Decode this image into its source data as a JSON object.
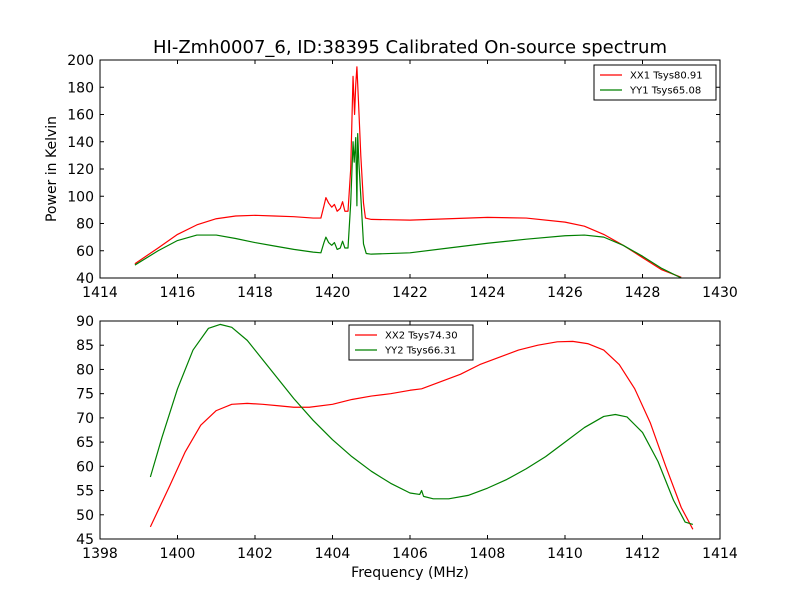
{
  "chart_data": {
    "title": "HI-Zmh0007_6, ID:38395 Calibrated On-source spectrum",
    "charts": [
      {
        "type": "line",
        "ylabel": "Power in Kelvin",
        "xlabel": "",
        "xlim": [
          1414,
          1430
        ],
        "ylim": [
          40,
          200
        ],
        "xticks": [
          "1414",
          "1416",
          "1418",
          "1420",
          "1422",
          "1424",
          "1426",
          "1428",
          "1430"
        ],
        "yticks": [
          "40",
          "60",
          "80",
          "100",
          "120",
          "140",
          "160",
          "180",
          "200"
        ],
        "legend_position": "top-right",
        "series": [
          {
            "name": "XX1 Tsys80.91",
            "color": "#ff0000",
            "points": [
              [
                1414.9,
                50.5
              ],
              [
                1415.5,
                62
              ],
              [
                1416.0,
                72
              ],
              [
                1416.5,
                79
              ],
              [
                1417.0,
                83.5
              ],
              [
                1417.5,
                85.5
              ],
              [
                1418.0,
                86
              ],
              [
                1418.5,
                85.5
              ],
              [
                1419.0,
                85
              ],
              [
                1419.5,
                84
              ],
              [
                1419.7,
                84
              ],
              [
                1419.78,
                93
              ],
              [
                1419.83,
                99
              ],
              [
                1419.9,
                95
              ],
              [
                1419.98,
                92
              ],
              [
                1420.05,
                94
              ],
              [
                1420.12,
                89
              ],
              [
                1420.2,
                91
              ],
              [
                1420.26,
                96
              ],
              [
                1420.32,
                89
              ],
              [
                1420.4,
                89
              ],
              [
                1420.47,
                120
              ],
              [
                1420.53,
                188
              ],
              [
                1420.57,
                160
              ],
              [
                1420.6,
                182
              ],
              [
                1420.63,
                195
              ],
              [
                1420.67,
                170
              ],
              [
                1420.73,
                130
              ],
              [
                1420.8,
                95
              ],
              [
                1420.85,
                84
              ],
              [
                1421.0,
                83
              ],
              [
                1422.0,
                82.5
              ],
              [
                1423.0,
                83.5
              ],
              [
                1424.0,
                84.5
              ],
              [
                1425.0,
                84
              ],
              [
                1426.0,
                81
              ],
              [
                1426.5,
                78
              ],
              [
                1427.0,
                72
              ],
              [
                1427.5,
                64
              ],
              [
                1428.0,
                55
              ],
              [
                1428.5,
                46
              ],
              [
                1429.0,
                40.5
              ]
            ]
          },
          {
            "name": "YY1 Tsys65.08",
            "color": "#008000",
            "points": [
              [
                1414.9,
                49.5
              ],
              [
                1415.5,
                60
              ],
              [
                1416.0,
                67.5
              ],
              [
                1416.5,
                71.5
              ],
              [
                1417.0,
                71.5
              ],
              [
                1417.5,
                69
              ],
              [
                1418.0,
                66
              ],
              [
                1418.5,
                63.5
              ],
              [
                1419.0,
                61
              ],
              [
                1419.5,
                59
              ],
              [
                1419.7,
                58.5
              ],
              [
                1419.78,
                66
              ],
              [
                1419.83,
                70
              ],
              [
                1419.9,
                66
              ],
              [
                1419.98,
                64
              ],
              [
                1420.05,
                66
              ],
              [
                1420.12,
                61
              ],
              [
                1420.2,
                62
              ],
              [
                1420.26,
                67
              ],
              [
                1420.32,
                62
              ],
              [
                1420.4,
                62
              ],
              [
                1420.47,
                95
              ],
              [
                1420.53,
                140
              ],
              [
                1420.56,
                125
              ],
              [
                1420.6,
                143
              ],
              [
                1420.63,
                93
              ],
              [
                1420.65,
                146
              ],
              [
                1420.68,
                125
              ],
              [
                1420.73,
                100
              ],
              [
                1420.8,
                65
              ],
              [
                1420.87,
                58
              ],
              [
                1421.0,
                57.5
              ],
              [
                1422.0,
                58.5
              ],
              [
                1423.0,
                62
              ],
              [
                1424.0,
                65.5
              ],
              [
                1425.0,
                68.5
              ],
              [
                1426.0,
                71
              ],
              [
                1426.5,
                71.5
              ],
              [
                1427.0,
                70
              ],
              [
                1427.5,
                64
              ],
              [
                1428.0,
                56
              ],
              [
                1428.5,
                47
              ],
              [
                1429.0,
                40
              ]
            ]
          }
        ]
      },
      {
        "type": "line",
        "ylabel": "",
        "xlabel": "Frequency (MHz)",
        "xlim": [
          1398,
          1414
        ],
        "ylim": [
          45,
          90
        ],
        "xticks": [
          "1398",
          "1400",
          "1402",
          "1404",
          "1406",
          "1408",
          "1410",
          "1412",
          "1414"
        ],
        "yticks": [
          "45",
          "50",
          "55",
          "60",
          "65",
          "70",
          "75",
          "80",
          "85",
          "90"
        ],
        "legend_position": "top-center",
        "series": [
          {
            "name": "XX2 Tsys74.30",
            "color": "#ff0000",
            "points": [
              [
                1399.3,
                47.5
              ],
              [
                1399.8,
                56
              ],
              [
                1400.2,
                63
              ],
              [
                1400.6,
                68.5
              ],
              [
                1401.0,
                71.5
              ],
              [
                1401.4,
                72.8
              ],
              [
                1401.8,
                73
              ],
              [
                1402.2,
                72.8
              ],
              [
                1402.6,
                72.5
              ],
              [
                1403.0,
                72.2
              ],
              [
                1403.4,
                72.2
              ],
              [
                1404.0,
                72.8
              ],
              [
                1404.5,
                73.8
              ],
              [
                1405.0,
                74.5
              ],
              [
                1405.5,
                75
              ],
              [
                1406.0,
                75.7
              ],
              [
                1406.3,
                76
              ],
              [
                1406.8,
                77.5
              ],
              [
                1407.3,
                79
              ],
              [
                1407.8,
                81
              ],
              [
                1408.3,
                82.5
              ],
              [
                1408.8,
                84
              ],
              [
                1409.3,
                85
              ],
              [
                1409.8,
                85.7
              ],
              [
                1410.2,
                85.8
              ],
              [
                1410.6,
                85.3
              ],
              [
                1411.0,
                84
              ],
              [
                1411.4,
                81
              ],
              [
                1411.8,
                76
              ],
              [
                1412.2,
                69
              ],
              [
                1412.6,
                60
              ],
              [
                1413.0,
                51.5
              ],
              [
                1413.3,
                47
              ]
            ]
          },
          {
            "name": "YY2 Tsys66.31",
            "color": "#008000",
            "points": [
              [
                1399.3,
                57.8
              ],
              [
                1399.6,
                66
              ],
              [
                1400.0,
                76
              ],
              [
                1400.4,
                84
              ],
              [
                1400.8,
                88.5
              ],
              [
                1401.1,
                89.3
              ],
              [
                1401.4,
                88.7
              ],
              [
                1401.8,
                86
              ],
              [
                1402.2,
                82
              ],
              [
                1402.6,
                78
              ],
              [
                1403.0,
                74
              ],
              [
                1403.5,
                69.5
              ],
              [
                1404.0,
                65.5
              ],
              [
                1404.5,
                62
              ],
              [
                1405.0,
                59
              ],
              [
                1405.5,
                56.5
              ],
              [
                1406.0,
                54.5
              ],
              [
                1406.25,
                54.2
              ],
              [
                1406.3,
                55
              ],
              [
                1406.35,
                53.8
              ],
              [
                1406.6,
                53.3
              ],
              [
                1407.0,
                53.3
              ],
              [
                1407.5,
                54
              ],
              [
                1408.0,
                55.5
              ],
              [
                1408.5,
                57.3
              ],
              [
                1409.0,
                59.5
              ],
              [
                1409.5,
                62
              ],
              [
                1410.0,
                65
              ],
              [
                1410.5,
                68
              ],
              [
                1411.0,
                70.3
              ],
              [
                1411.3,
                70.7
              ],
              [
                1411.6,
                70.2
              ],
              [
                1412.0,
                67
              ],
              [
                1412.4,
                61
              ],
              [
                1412.8,
                53
              ],
              [
                1413.1,
                48.5
              ],
              [
                1413.3,
                48
              ]
            ]
          }
        ]
      }
    ]
  }
}
